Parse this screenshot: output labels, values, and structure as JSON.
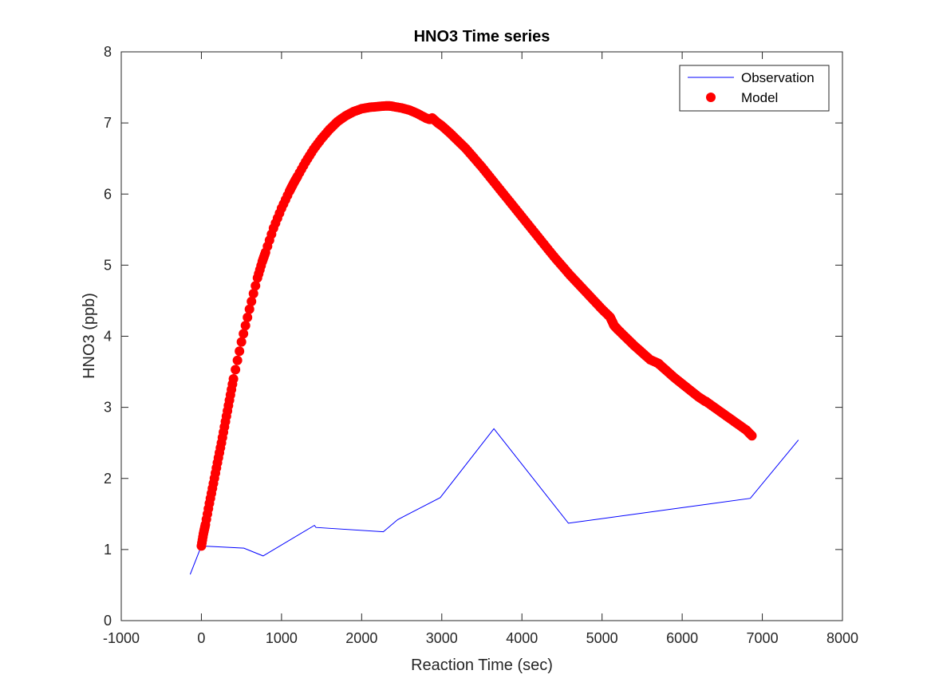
{
  "chart_data": {
    "type": "line",
    "title": "HNO3 Time series",
    "xlabel": "Reaction Time (sec)",
    "ylabel": "HNO3 (ppb)",
    "xlim": [
      -1000,
      8000
    ],
    "ylim": [
      0,
      8
    ],
    "xticks": [
      -1000,
      0,
      1000,
      2000,
      3000,
      4000,
      5000,
      6000,
      7000,
      8000
    ],
    "xtick_labels": [
      "-1000",
      "0",
      "1000",
      "2000",
      "3000",
      "4000",
      "5000",
      "6000",
      "7000",
      "8000"
    ],
    "yticks": [
      0,
      1,
      2,
      3,
      4,
      5,
      6,
      7,
      8
    ],
    "ytick_labels": [
      "0",
      "1",
      "2",
      "3",
      "4",
      "5",
      "6",
      "7",
      "8"
    ],
    "grid": false,
    "legend_position": "top-right",
    "series": [
      {
        "name": "Observation",
        "style": "line",
        "color": "#0000ff",
        "x": [
          -140,
          0,
          530,
          770,
          1410,
          1430,
          2270,
          2450,
          2980,
          3650,
          4580,
          6850,
          7450
        ],
        "y": [
          0.65,
          1.05,
          1.02,
          0.91,
          1.34,
          1.31,
          1.25,
          1.42,
          1.73,
          2.7,
          1.37,
          1.72,
          2.54
        ]
      },
      {
        "name": "Model",
        "style": "markers",
        "color": "#ff0000",
        "x": [
          0,
          25,
          50,
          100,
          150,
          200,
          250,
          300,
          350,
          400,
          500,
          600,
          700,
          760,
          800,
          900,
          1000,
          1100,
          1150,
          1200,
          1300,
          1400,
          1500,
          1600,
          1700,
          1800,
          1900,
          2000,
          2100,
          2200,
          2300,
          2350,
          2400,
          2500,
          2600,
          2700,
          2800,
          2850,
          2880,
          2950,
          3000,
          3100,
          3200,
          3300,
          3400,
          3500,
          3600,
          3700,
          3800,
          3900,
          4000,
          4100,
          4200,
          4300,
          4400,
          4500,
          4600,
          4700,
          4800,
          4900,
          5000,
          5100,
          5130,
          5150,
          5200,
          5300,
          5400,
          5500,
          5600,
          5700,
          5720,
          5800,
          5900,
          6000,
          6100,
          6200,
          6280,
          6300,
          6400,
          6500,
          6600,
          6700,
          6800,
          6870
        ],
        "y": [
          1.05,
          1.22,
          1.35,
          1.65,
          1.93,
          2.22,
          2.5,
          2.8,
          3.1,
          3.4,
          3.92,
          4.38,
          4.82,
          5.05,
          5.18,
          5.52,
          5.8,
          6.04,
          6.15,
          6.25,
          6.45,
          6.63,
          6.78,
          6.91,
          7.02,
          7.1,
          7.16,
          7.2,
          7.22,
          7.23,
          7.24,
          7.24,
          7.23,
          7.21,
          7.18,
          7.13,
          7.07,
          7.05,
          7.07,
          7.0,
          6.96,
          6.86,
          6.75,
          6.64,
          6.51,
          6.38,
          6.24,
          6.1,
          5.96,
          5.82,
          5.68,
          5.54,
          5.4,
          5.26,
          5.12,
          4.99,
          4.86,
          4.74,
          4.62,
          4.5,
          4.38,
          4.27,
          4.2,
          4.15,
          4.09,
          3.98,
          3.87,
          3.77,
          3.67,
          3.62,
          3.6,
          3.52,
          3.42,
          3.33,
          3.24,
          3.15,
          3.09,
          3.08,
          3.0,
          2.92,
          2.84,
          2.76,
          2.68,
          2.6
        ]
      }
    ]
  }
}
